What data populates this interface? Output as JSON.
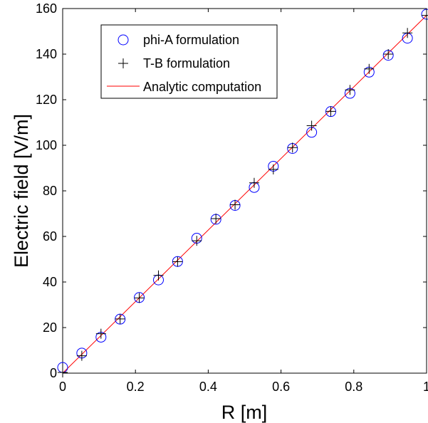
{
  "chart_data": {
    "type": "scatter",
    "xlabel": "R  [m]",
    "ylabel": "Electric field  [V/m]",
    "xlim": [
      0,
      1
    ],
    "ylim": [
      0,
      160
    ],
    "xticks": [
      "0",
      "0.2",
      "0.4",
      "0.6",
      "0.8",
      "1"
    ],
    "yticks": [
      "0",
      "20",
      "40",
      "60",
      "80",
      "100",
      "120",
      "140",
      "160"
    ],
    "grid": false,
    "legend_position": "top-left",
    "series": [
      {
        "name": "phi-A formulation",
        "marker": "circle",
        "color": "#0000ff",
        "x": [
          0,
          0.0526,
          0.1053,
          0.1579,
          0.2105,
          0.2632,
          0.3158,
          0.3684,
          0.4211,
          0.4737,
          0.5263,
          0.5789,
          0.6316,
          0.6842,
          0.7368,
          0.7895,
          0.8421,
          0.8947,
          0.9474,
          1.0
        ],
        "y": [
          2.5,
          8.8,
          15.8,
          23.7,
          33.2,
          40.9,
          49.0,
          59.2,
          67.5,
          73.6,
          81.5,
          90.8,
          98.6,
          105.7,
          114.8,
          122.8,
          132.1,
          139.5,
          147.0,
          157.5
        ]
      },
      {
        "name": "T-B formulation",
        "marker": "plus",
        "color": "#000000",
        "x": [
          0,
          0.0526,
          0.1053,
          0.1579,
          0.2105,
          0.2632,
          0.3158,
          0.3684,
          0.4211,
          0.4737,
          0.5263,
          0.5789,
          0.6316,
          0.6842,
          0.7368,
          0.7895,
          0.8421,
          0.8947,
          0.9474,
          1.0
        ],
        "y": [
          0.3,
          7.6,
          17.3,
          23.8,
          33.0,
          42.9,
          48.9,
          58.1,
          67.8,
          73.9,
          83.5,
          89.4,
          99.0,
          108.6,
          114.9,
          124.3,
          133.5,
          140.0,
          149.3,
          157.0
        ]
      },
      {
        "name": "Analytic computation",
        "marker": "line",
        "color": "#ff0000",
        "x": [
          0,
          1
        ],
        "y": [
          0,
          157
        ]
      }
    ]
  }
}
